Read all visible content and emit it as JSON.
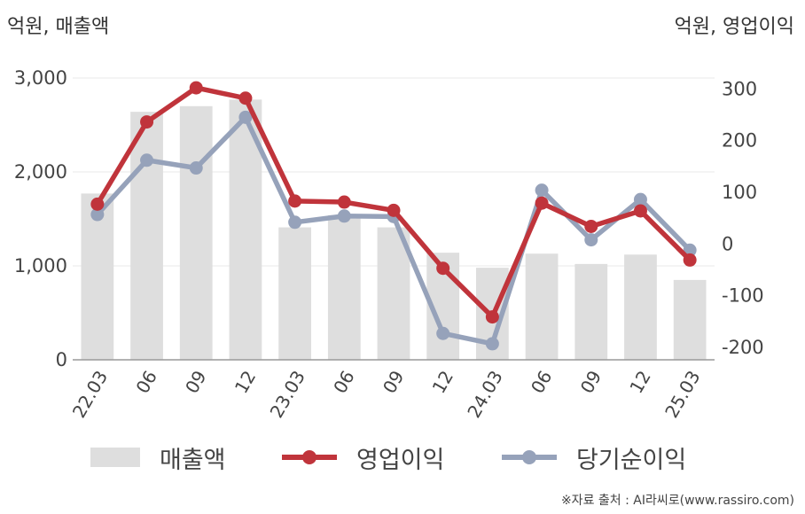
{
  "units": {
    "left": "억원, 매출액",
    "right": "억원, 영업이익"
  },
  "source": "※자료 출처 : AI라씨로(www.rassiro.com)",
  "colors": {
    "bar": "#dedede",
    "operating_profit": "#c0343b",
    "net_income": "#96a2ba",
    "grid": "#e8e8e8",
    "axis": "#999999"
  },
  "chart_data": {
    "type": "bar+line",
    "categories": [
      "22.03",
      "06",
      "09",
      "12",
      "23.03",
      "06",
      "09",
      "12",
      "24.03",
      "06",
      "09",
      "12",
      "25.03"
    ],
    "left_axis": {
      "ticks": [
        0,
        1000,
        2000,
        3000
      ],
      "tick_labels": [
        "0",
        "1,000",
        "2,000",
        "3,000"
      ],
      "ylim": [
        0,
        3000
      ]
    },
    "right_axis": {
      "ticks": [
        -200,
        -100,
        0,
        100,
        200,
        300
      ],
      "tick_labels": [
        "-200",
        "-100",
        "0",
        "100",
        "200",
        "300"
      ],
      "ylim": [
        -224,
        321
      ]
    },
    "series": [
      {
        "name": "매출액",
        "type": "bar",
        "axis": "left",
        "values": [
          1770,
          2640,
          2700,
          2770,
          1410,
          1540,
          1410,
          1140,
          980,
          1130,
          1020,
          1120,
          850
        ]
      },
      {
        "name": "영업이익",
        "type": "line",
        "axis": "right",
        "values": [
          77,
          236,
          302,
          282,
          83,
          81,
          65,
          -47,
          -141,
          79,
          34,
          64,
          -31
        ]
      },
      {
        "name": "당기순이익",
        "type": "line",
        "axis": "right",
        "values": [
          57,
          162,
          147,
          245,
          42,
          54,
          53,
          -173,
          -193,
          104,
          8,
          86,
          -12
        ]
      }
    ],
    "grid": true,
    "legend_position": "bottom"
  }
}
